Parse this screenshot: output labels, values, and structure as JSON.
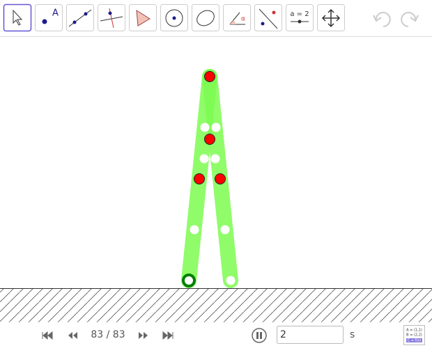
{
  "toolbar": {
    "point_label": "A",
    "angle_label": "α",
    "slider_label": "a = 2"
  },
  "playback": {
    "frame": "83 / 83",
    "speed": "2",
    "unit": "s"
  },
  "algebra_icon": {
    "lines": [
      "A = (1,1)",
      "B = (2,2)",
      "C = f(x)"
    ]
  }
}
